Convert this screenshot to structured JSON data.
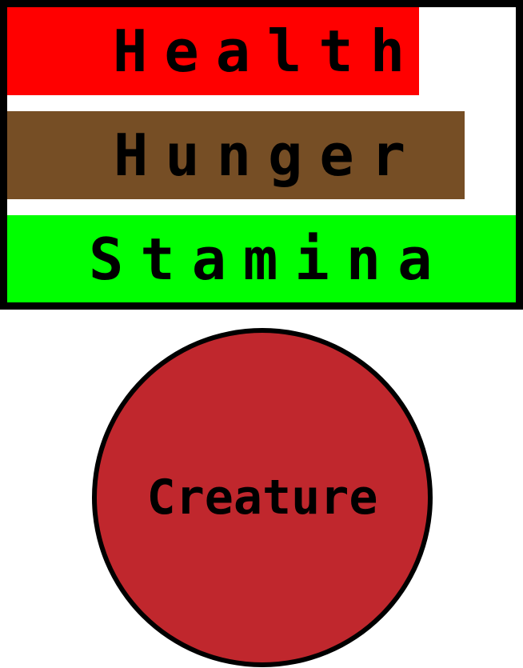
{
  "stats": [
    {
      "id": "health",
      "label": "Health",
      "level": 0.81,
      "color": "#ff0000"
    },
    {
      "id": "hunger",
      "label": "Hunger",
      "level": 0.9,
      "color": "#764e25"
    },
    {
      "id": "stamina",
      "label": "Stamina",
      "level": 1.0,
      "color": "#00ff00"
    }
  ],
  "creature": {
    "label": "Creature",
    "color": "#c0272d",
    "outline_color": "#000000"
  },
  "panel": {
    "background": "#ffffff",
    "border_color": "#000000"
  }
}
